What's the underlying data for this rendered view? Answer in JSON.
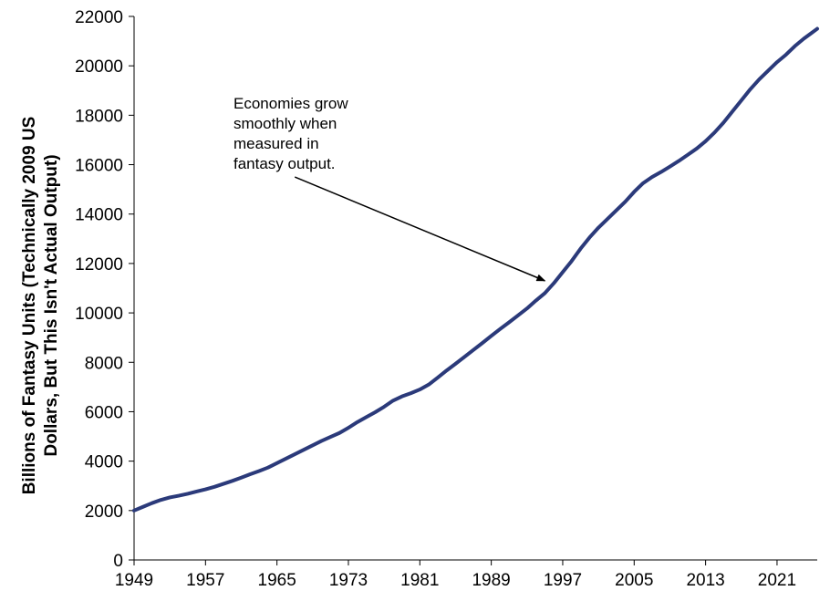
{
  "chart_data": {
    "type": "line",
    "ylabel_line1": "Billions  of Fantasy Units (Technically 2009 US",
    "ylabel_line2": "Dollars, But This Isn't Actual Output)",
    "ylim": [
      0,
      22000
    ],
    "yticks": [
      0,
      2000,
      4000,
      6000,
      8000,
      10000,
      12000,
      14000,
      16000,
      18000,
      20000,
      22000
    ],
    "xlim": [
      1949,
      2025.5
    ],
    "xticks": [
      1949,
      1957,
      1965,
      1973,
      1981,
      1989,
      1997,
      2005,
      2013,
      2021
    ],
    "grid": false,
    "series": [
      {
        "color": "#2b3a7a",
        "x": [
          1949,
          1950,
          1951,
          1952,
          1953,
          1954,
          1955,
          1956,
          1957,
          1958,
          1959,
          1960,
          1961,
          1962,
          1963,
          1964,
          1965,
          1966,
          1967,
          1968,
          1969,
          1970,
          1971,
          1972,
          1973,
          1974,
          1975,
          1976,
          1977,
          1978,
          1979,
          1980,
          1981,
          1982,
          1983,
          1984,
          1985,
          1986,
          1987,
          1988,
          1989,
          1990,
          1991,
          1992,
          1993,
          1994,
          1995,
          1996,
          1997,
          1998,
          1999,
          2000,
          2001,
          2002,
          2003,
          2004,
          2005,
          2006,
          2007,
          2008,
          2009,
          2010,
          2011,
          2012,
          2013,
          2014,
          2015,
          2016,
          2017,
          2018,
          2019,
          2020,
          2021,
          2022,
          2023,
          2024,
          2025.5
        ],
        "values": [
          2000,
          2150,
          2300,
          2430,
          2530,
          2600,
          2680,
          2770,
          2860,
          2960,
          3080,
          3200,
          3330,
          3470,
          3600,
          3740,
          3920,
          4100,
          4280,
          4460,
          4640,
          4820,
          4980,
          5140,
          5350,
          5580,
          5780,
          5980,
          6200,
          6450,
          6620,
          6750,
          6900,
          7100,
          7380,
          7670,
          7940,
          8220,
          8500,
          8780,
          9070,
          9350,
          9620,
          9900,
          10180,
          10500,
          10800,
          11200,
          11650,
          12100,
          12600,
          13050,
          13450,
          13800,
          14150,
          14500,
          14900,
          15250,
          15500,
          15700,
          15920,
          16150,
          16400,
          16650,
          16950,
          17300,
          17700,
          18150,
          18600,
          19050,
          19450,
          19800,
          20150,
          20450,
          20800,
          21100,
          21500
        ]
      }
    ],
    "annotations": [
      {
        "lines": [
          "Economies grow",
          "smoothly when",
          "measured in",
          "fantasy output."
        ],
        "arrow_from": [
          1967,
          15500
        ],
        "arrow_to": [
          1995,
          11300
        ]
      }
    ]
  }
}
